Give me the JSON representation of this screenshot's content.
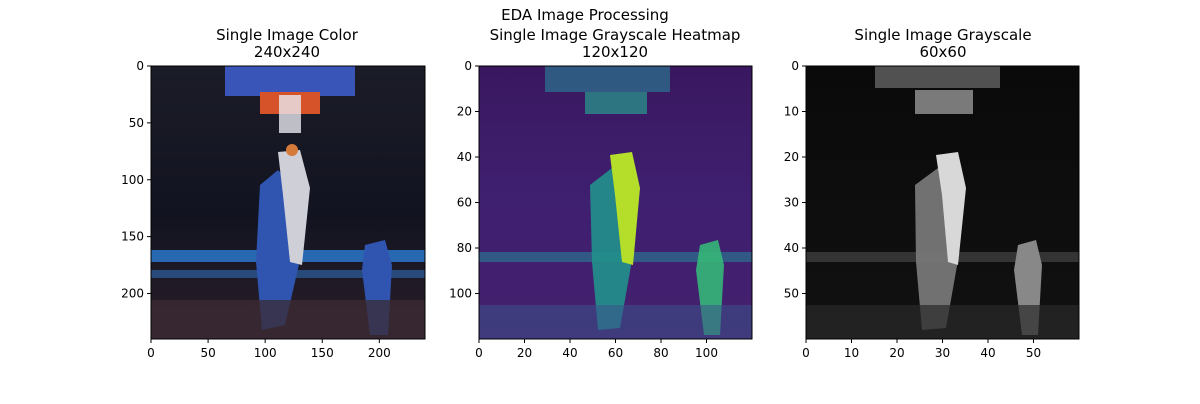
{
  "figure": {
    "suptitle": "EDA Image Processing"
  },
  "chart_data": [
    {
      "type": "image",
      "colormap": "rgb",
      "title_line1": "Single Image Color",
      "title_line2": "240x240",
      "image_size": [
        240,
        240
      ],
      "xlim": [
        0,
        240
      ],
      "ylim": [
        240,
        0
      ],
      "xticks": [
        0,
        50,
        100,
        150,
        200
      ],
      "yticks": [
        0,
        50,
        100,
        150,
        200
      ]
    },
    {
      "type": "heatmap",
      "colormap": "viridis",
      "title_line1": "Single Image Grayscale Heatmap",
      "title_line2": "120x120",
      "image_size": [
        120,
        120
      ],
      "xlim": [
        0,
        120
      ],
      "ylim": [
        120,
        0
      ],
      "xticks": [
        0,
        20,
        40,
        60,
        80,
        100
      ],
      "yticks": [
        0,
        20,
        40,
        60,
        80,
        100
      ]
    },
    {
      "type": "image",
      "colormap": "gray",
      "title_line1": "Single Image Grayscale",
      "title_line2": "60x60",
      "image_size": [
        60,
        60
      ],
      "xlim": [
        0,
        60
      ],
      "ylim": [
        60,
        0
      ],
      "xticks": [
        0,
        10,
        20,
        30,
        40,
        50
      ],
      "yticks": [
        0,
        10,
        20,
        30,
        40,
        50
      ]
    }
  ]
}
